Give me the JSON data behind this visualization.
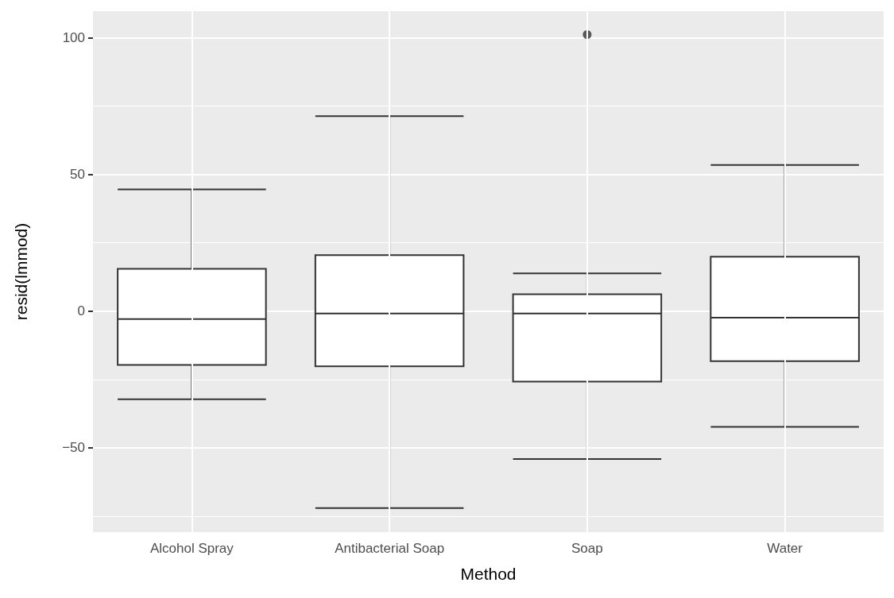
{
  "chart_data": {
    "type": "box",
    "xlabel": "Method",
    "ylabel": "resid(lmmod)",
    "categories": [
      "Alcohol Spray",
      "Antibacterial Soap",
      "Soap",
      "Water"
    ],
    "boxes": [
      {
        "low": -32.2,
        "q1": -19.7,
        "median": -2.9,
        "q3": 15.5,
        "high": 44.5
      },
      {
        "low": -72.0,
        "q1": -20.2,
        "median": -0.9,
        "q3": 20.5,
        "high": 71.3
      },
      {
        "low": -54.1,
        "q1": -25.8,
        "median": -0.9,
        "q3": 6.2,
        "high": 13.8,
        "outliers": [
          101.1
        ]
      },
      {
        "low": -42.3,
        "q1": -18.3,
        "median": -2.4,
        "q3": 19.9,
        "high": 53.4
      }
    ],
    "color": "#333333",
    "ylim": [
      -80.8,
      109.7
    ],
    "yticks": [
      {
        "value": -75,
        "label": null
      },
      {
        "value": -50,
        "label": "−50"
      },
      {
        "value": -25,
        "label": null
      },
      0,
      {
        "value": 25,
        "label": null
      },
      50,
      {
        "value": 75,
        "label": null
      },
      100
    ],
    "grid": true
  }
}
